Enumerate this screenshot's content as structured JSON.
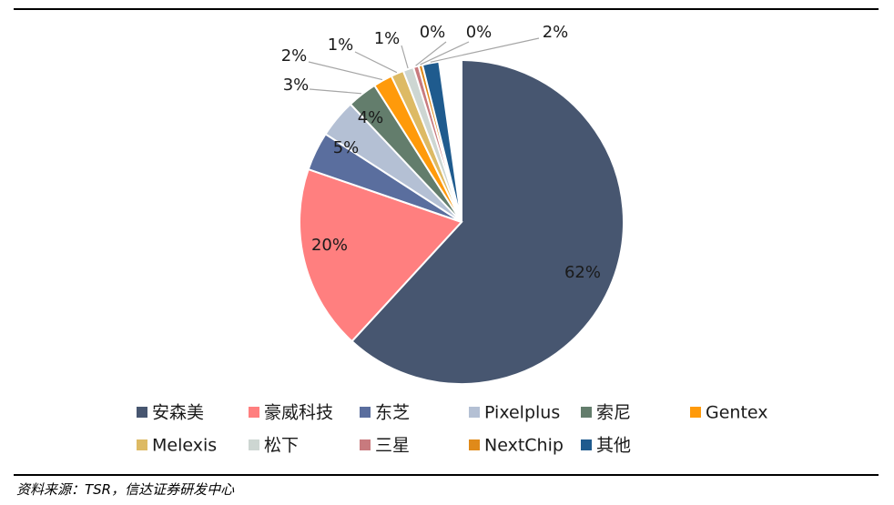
{
  "chart_data": {
    "type": "pie",
    "title": "",
    "categories": [
      "安森美",
      "豪威科技",
      "东芝",
      "Pixelplus",
      "索尼",
      "Gentex",
      "Melexis",
      "松下",
      "三星",
      "NextChip",
      "其他"
    ],
    "values": [
      62,
      20,
      5,
      4,
      3,
      2,
      1,
      1,
      0,
      0,
      2
    ],
    "labels": [
      "62%",
      "20%",
      "5%",
      "4%",
      "3%",
      "2%",
      "1%",
      "1%",
      "0%",
      "0%",
      "2%"
    ],
    "colors": [
      "#475670",
      "#FF7F7F",
      "#5A6E9E",
      "#B4C0D4",
      "#637D6C",
      "#FF9A0A",
      "#DDBA64",
      "#CDD6D2",
      "#C87A7E",
      "#E08A1A",
      "#1F5B8E"
    ],
    "legend_position": "bottom"
  },
  "source_text": "资料来源：TSR，信达证券研发中心"
}
